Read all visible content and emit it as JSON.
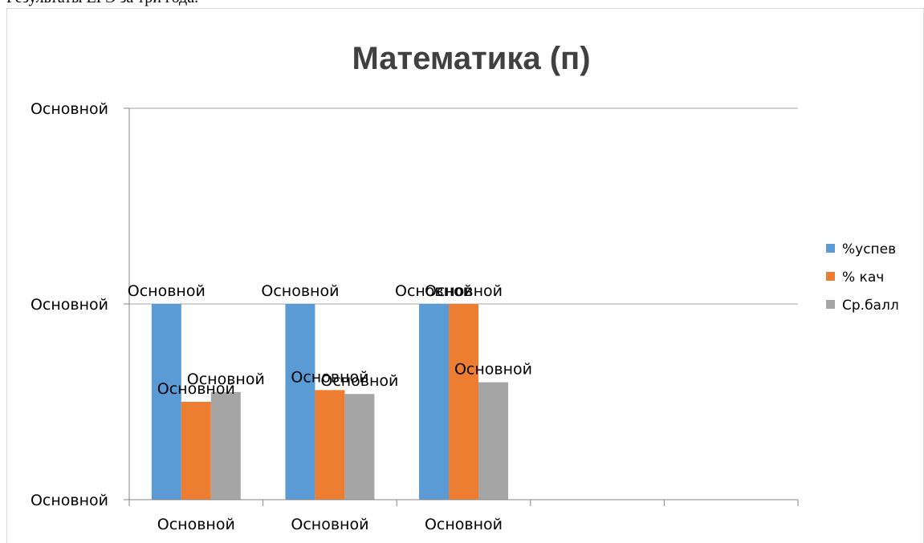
{
  "top_caption": "Результаты ЕГЭ за три года.",
  "colors": {
    "series": [
      "#5b9bd5",
      "#ed7d31",
      "#a5a5a5"
    ],
    "grid": "#a6a6a6",
    "axis": "#868686",
    "title": "#404040"
  },
  "chart_data": {
    "type": "bar",
    "title": "Математика (п)",
    "xlabel": "",
    "ylabel": "",
    "categories": [
      "Основной",
      "Основной",
      "Основной",
      "",
      ""
    ],
    "series": [
      {
        "name": "%успев",
        "values": [
          100,
          100,
          100,
          null,
          null
        ],
        "data_labels": [
          "Основной",
          "Основной",
          "Основной",
          "",
          ""
        ]
      },
      {
        "name": "% кач",
        "values": [
          50,
          56,
          100,
          null,
          null
        ],
        "data_labels": [
          "Основной",
          "Основной",
          "Основной",
          "",
          ""
        ]
      },
      {
        "name": "Ср.балл",
        "values": [
          55,
          54,
          60,
          null,
          null
        ],
        "data_labels": [
          "Основной",
          "Основной",
          "Основной",
          "",
          ""
        ]
      }
    ],
    "ylim": [
      0,
      200
    ],
    "y_ticks": [
      0,
      100,
      200
    ],
    "y_tick_labels": [
      "Основной",
      "Основной",
      "Основной"
    ],
    "grid": true,
    "legend_position": "right"
  }
}
